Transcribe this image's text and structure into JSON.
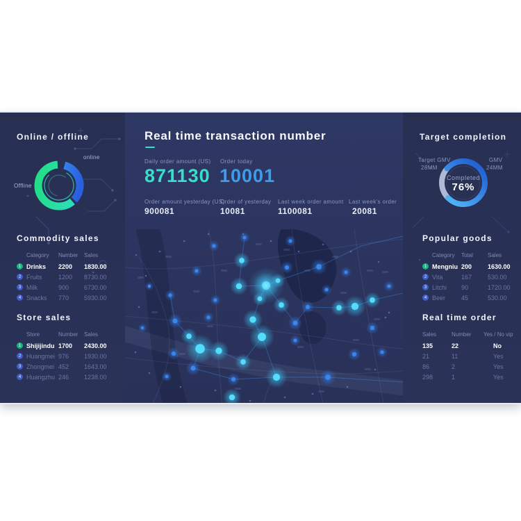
{
  "online_offline": {
    "title": "Online / offline",
    "online_label": "online",
    "offline_label": "Offline",
    "chart_data": {
      "type": "pie",
      "categories": [
        "offline",
        "online"
      ],
      "values": [
        60,
        33
      ],
      "colors": [
        "#27e09b",
        "#2f6fe6"
      ],
      "title": "Online / offline donut"
    }
  },
  "commodity_sales": {
    "title": "Commodity sales",
    "columns": [
      "Category",
      "Number",
      "Sales"
    ],
    "rows": [
      {
        "rank": "1",
        "category": "Drinks",
        "number": "2200",
        "sales": "1830.00"
      },
      {
        "rank": "2",
        "category": "Fruits",
        "number": "1200",
        "sales": "8730.00"
      },
      {
        "rank": "3",
        "category": "Milk",
        "number": "900",
        "sales": "6730.00"
      },
      {
        "rank": "4",
        "category": "Snacks",
        "number": "770",
        "sales": "5930.00"
      }
    ]
  },
  "store_sales": {
    "title": "Store sales",
    "columns": [
      "Store",
      "Number",
      "Sales"
    ],
    "rows": [
      {
        "rank": "1",
        "store": "Shijijindu",
        "number": "1700",
        "sales": "2430.00"
      },
      {
        "rank": "2",
        "store": "Huangmei",
        "number": "976",
        "sales": "1930.00"
      },
      {
        "rank": "3",
        "store": "Zhongmei",
        "number": "452",
        "sales": "1643.00"
      },
      {
        "rank": "4",
        "store": "Huangzhu",
        "number": "246",
        "sales": "1238.00"
      }
    ]
  },
  "transactions": {
    "title": "Real time transaction number",
    "primary_stats": [
      {
        "label": "Daily order amount (US)",
        "value": "871130",
        "color": "#38dfc8"
      },
      {
        "label": "Order today",
        "value": "10001",
        "color": "#3e9ce8"
      }
    ],
    "secondary_stats": [
      {
        "label": "Order amount yesterday (US)",
        "value": "900081"
      },
      {
        "label": "Order of yesterday",
        "value": "10081"
      },
      {
        "label": "Last week order amount",
        "value": "1100081"
      },
      {
        "label": "Last week's order",
        "value": "20081"
      }
    ]
  },
  "target_completion": {
    "title": "Target completion",
    "target_label": "Target GMV",
    "target_value": "28MM",
    "gmv_label": "GMV",
    "gmv_value": "24MM",
    "completed_label": "Completed",
    "completed_value": "76%",
    "chart_data": {
      "type": "pie",
      "categories": [
        "completed",
        "remaining"
      ],
      "values": [
        76,
        24
      ],
      "colors": [
        "#2e86e8",
        "#aeb9d6"
      ],
      "title": "Target completion 76%"
    }
  },
  "popular_goods": {
    "title": "Popular goods",
    "columns": [
      "Category",
      "Total",
      "Sales"
    ],
    "rows": [
      {
        "rank": "1",
        "category": "Mengniu",
        "total": "200",
        "sales": "1630.00"
      },
      {
        "rank": "2",
        "category": "Vita",
        "total": "167",
        "sales": "530.00"
      },
      {
        "rank": "3",
        "category": "Litchi",
        "total": "90",
        "sales": "1720.00"
      },
      {
        "rank": "4",
        "category": "Beer",
        "total": "45",
        "sales": "530.00"
      }
    ]
  },
  "real_time_order": {
    "title": "Real time order",
    "columns": [
      "Sales",
      "Number",
      "Yes / No vip"
    ],
    "rows": [
      {
        "sales": "135",
        "number": "22",
        "vip": "No"
      },
      {
        "sales": "21",
        "number": "11",
        "vip": "Yes"
      },
      {
        "sales": "86",
        "number": "2",
        "vip": "Yes"
      },
      {
        "sales": "298",
        "number": "1",
        "vip": "Yes"
      }
    ]
  },
  "colors": {
    "band_bg": "#2b3560",
    "accent_teal": "#38dfc8",
    "accent_blue": "#3e9ce8",
    "donut_green": "#27e09b",
    "donut_blue": "#2e86e8",
    "map_dot_cyan": "#55dcfa",
    "map_dot_blue": "#3b86ea"
  }
}
